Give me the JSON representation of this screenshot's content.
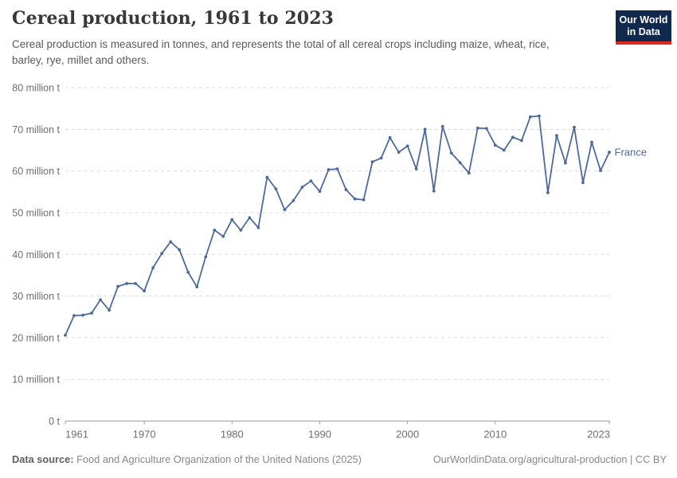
{
  "header": {
    "title": "Cereal production, 1961 to 2023",
    "subtitle": "Cereal production is measured in tonnes, and represents the total of all cereal crops including maize, wheat, rice, barley, rye, millet and others.",
    "logo": {
      "line1": "Our World",
      "line2": "in Data"
    }
  },
  "chart_data": {
    "type": "line",
    "title": "Cereal production, 1961 to 2023",
    "unit": "million t",
    "xlabel": "",
    "ylabel": "",
    "x_range": [
      1961,
      2023
    ],
    "ylim": [
      0,
      80
    ],
    "grid": "horizontal-dashed",
    "legend_position": "end-of-line",
    "x": [
      1961,
      1962,
      1963,
      1964,
      1965,
      1966,
      1967,
      1968,
      1969,
      1970,
      1971,
      1972,
      1973,
      1974,
      1975,
      1976,
      1977,
      1978,
      1979,
      1980,
      1981,
      1982,
      1983,
      1984,
      1985,
      1986,
      1987,
      1988,
      1989,
      1990,
      1991,
      1992,
      1993,
      1994,
      1995,
      1996,
      1997,
      1998,
      1999,
      2000,
      2001,
      2002,
      2003,
      2004,
      2005,
      2006,
      2007,
      2008,
      2009,
      2010,
      2011,
      2012,
      2013,
      2014,
      2015,
      2016,
      2017,
      2018,
      2019,
      2020,
      2021,
      2022,
      2023
    ],
    "series": [
      {
        "name": "France",
        "values": [
          20.6,
          25.3,
          25.4,
          25.9,
          29.1,
          26.6,
          32.3,
          33.0,
          33.0,
          31.2,
          36.8,
          40.2,
          43.0,
          41.1,
          35.7,
          32.2,
          39.4,
          45.8,
          44.3,
          48.3,
          45.8,
          48.8,
          46.4,
          58.5,
          55.7,
          50.7,
          52.9,
          56.1,
          57.6,
          55.1,
          60.3,
          60.5,
          55.5,
          53.3,
          53.1,
          62.2,
          63.1,
          68.0,
          64.5,
          66.0,
          60.5,
          70.0,
          55.2,
          70.7,
          64.3,
          62.0,
          59.5,
          70.3,
          70.2,
          66.2,
          65.0,
          68.1,
          67.3,
          73.0,
          73.2,
          54.8,
          68.5,
          61.9,
          70.5,
          57.2,
          66.9,
          60.1,
          64.5
        ]
      }
    ],
    "yticks": [
      {
        "value": 0,
        "label": "0 t"
      },
      {
        "value": 10,
        "label": "10 million t"
      },
      {
        "value": 20,
        "label": "20 million t"
      },
      {
        "value": 30,
        "label": "30 million t"
      },
      {
        "value": 40,
        "label": "40 million t"
      },
      {
        "value": 50,
        "label": "50 million t"
      },
      {
        "value": 60,
        "label": "60 million t"
      },
      {
        "value": 70,
        "label": "70 million t"
      },
      {
        "value": 80,
        "label": "80 million t"
      }
    ],
    "xticks": [
      1961,
      1970,
      1980,
      1990,
      2000,
      2010,
      2023
    ],
    "colors": {
      "line": "#4c6a9c",
      "entity_label": "#4c6a9c",
      "grid": "#dcdcdc",
      "axis": "#a1a1a1",
      "tick_text": "#6e6e6e"
    }
  },
  "footer": {
    "source_label": "Data source:",
    "source_text": "Food and Agriculture Organization of the United Nations (2025)",
    "credit": "OurWorldinData.org/agricultural-production | CC BY"
  }
}
